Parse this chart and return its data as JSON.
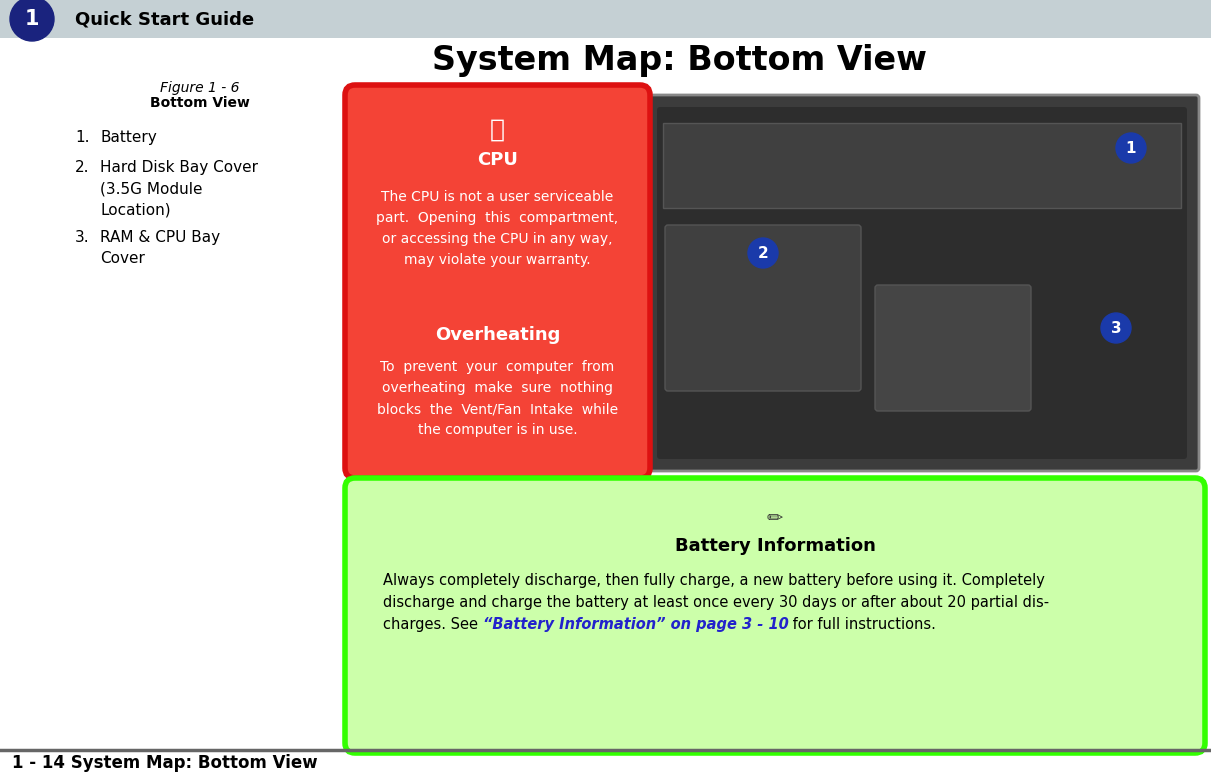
{
  "title": "System Map: Bottom View",
  "header_text": "Quick Start Guide",
  "header_num": "1",
  "header_bg": "#c5d0d4",
  "header_circle_bg": "#1a237e",
  "figure_label": "Figure 1 - 6",
  "figure_sublabel": "Bottom View",
  "list_items": [
    "Battery",
    "Hard Disk Bay Cover\n(3.5G Module\nLocation)",
    "RAM & CPU Bay\nCover"
  ],
  "red_box_bg": "#f44336",
  "red_box_border": "#dd1111",
  "cpu_title": "CPU",
  "cpu_body": "The CPU is not a user serviceable\npart.  Opening  this  compartment,\nor accessing the CPU in any way,\nmay violate your warranty.",
  "overheat_title": "Overheating",
  "overheat_body": "To  prevent  your  computer  from\noverheating  make  sure  nothing\nblocks  the  Vent/Fan  Intake  while\nthe computer is in use.",
  "green_box_bg": "#ccffaa",
  "green_box_border": "#33ff00",
  "battery_title": "Battery Information",
  "battery_body_line1": "Always completely discharge, then fully charge, a new battery before using it. Completely",
  "battery_body_line2": "discharge and charge the battery at least once every 30 days or after about 20 partial dis-",
  "battery_body_line3_pre": "charges. See ",
  "battery_link": "“Battery Information” on page 3 - 10",
  "battery_body_line3_post": " for full instructions.",
  "footer_text": "1 - 14 System Map: Bottom View",
  "footer_bar_color": "#666666",
  "bg_color": "#ffffff",
  "badge_color": "#1a3aaa",
  "img_bg": "#3c3c3c",
  "img_inner": "#2d2d2d"
}
